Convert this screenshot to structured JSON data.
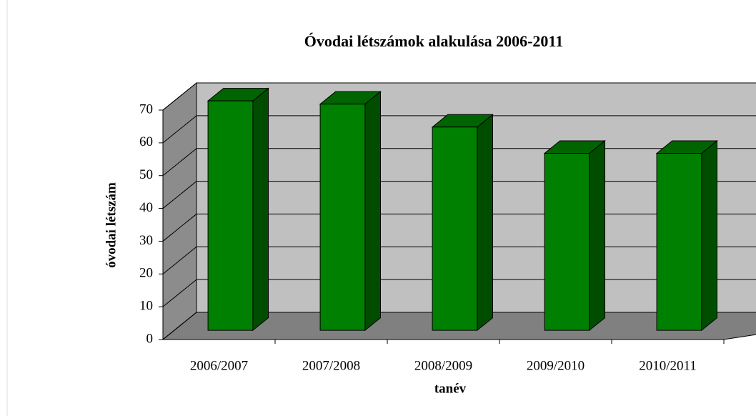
{
  "chart_data": {
    "type": "bar3d",
    "title": "Óvodai létszámok alakulása 2006-2011",
    "x_label": "tanév",
    "y_label": "óvodai létszám",
    "categories": [
      "2006/2007",
      "2007/2008",
      "2008/2009",
      "2009/2010",
      "2010/2011"
    ],
    "values": [
      70,
      69,
      62,
      54,
      54
    ],
    "color": "#008000",
    "ylim": [
      0,
      70
    ],
    "yticks": [
      0,
      10,
      20,
      30,
      40,
      50,
      60,
      70
    ],
    "grid": true
  }
}
